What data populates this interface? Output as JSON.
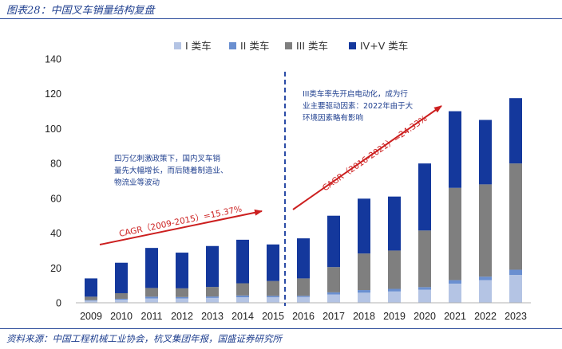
{
  "header": {
    "title": "图表28：中国叉车销量结构复盘"
  },
  "footer": {
    "source": "资料来源：中国工程机械工业协会，杭叉集团年报，国盛证券研究所"
  },
  "annotations": {
    "note_left": [
      "四万亿刺激政策下，国内叉车销",
      "量先大幅增长，而后随着制造业、",
      "物流业等波动"
    ],
    "note_right": [
      "III类车率先开启电动化，成为行",
      "业主要驱动因素：2022年由于大",
      "环境因素略有影响"
    ],
    "cagr_left": "CAGR（2009-2015）=15.37%",
    "cagr_right": "CAGR（2016-2021）=24.33%"
  },
  "chart_data": {
    "type": "bar",
    "stacked": true,
    "categories": [
      "2009",
      "2010",
      "2011",
      "2012",
      "2013",
      "2014",
      "2015",
      "2016",
      "2017",
      "2018",
      "2019",
      "2020",
      "2021",
      "2022",
      "2023"
    ],
    "ylim": [
      0,
      140
    ],
    "yticks": [
      0,
      20,
      40,
      60,
      80,
      100,
      120,
      140
    ],
    "legend_position": "top",
    "series": [
      {
        "name": "I 类车",
        "color": "#b4c4e4",
        "values": [
          1.2,
          1.8,
          2.5,
          2.5,
          2.8,
          3.2,
          3.2,
          3.3,
          4.8,
          5.8,
          6.5,
          7.5,
          11,
          13,
          16
        ]
      },
      {
        "name": "II 类车",
        "color": "#6a8fd0",
        "values": [
          0.3,
          0.5,
          1.0,
          0.8,
          0.8,
          1.0,
          0.8,
          0.7,
          1.2,
          1.5,
          1.5,
          1.5,
          2.0,
          2.0,
          3.0
        ]
      },
      {
        "name": "III 类车",
        "color": "#7f7f7f",
        "values": [
          2.0,
          3.2,
          5.0,
          5.0,
          5.5,
          7.0,
          8.5,
          10.0,
          14.5,
          21,
          22,
          32.5,
          53,
          53,
          61
        ]
      },
      {
        "name": "IV+V 类车",
        "color": "#14389c",
        "values": [
          10.5,
          17.5,
          23,
          20.5,
          23.5,
          25,
          21,
          23,
          29.5,
          31.5,
          31,
          38.5,
          44,
          37,
          37.5
        ]
      }
    ]
  }
}
